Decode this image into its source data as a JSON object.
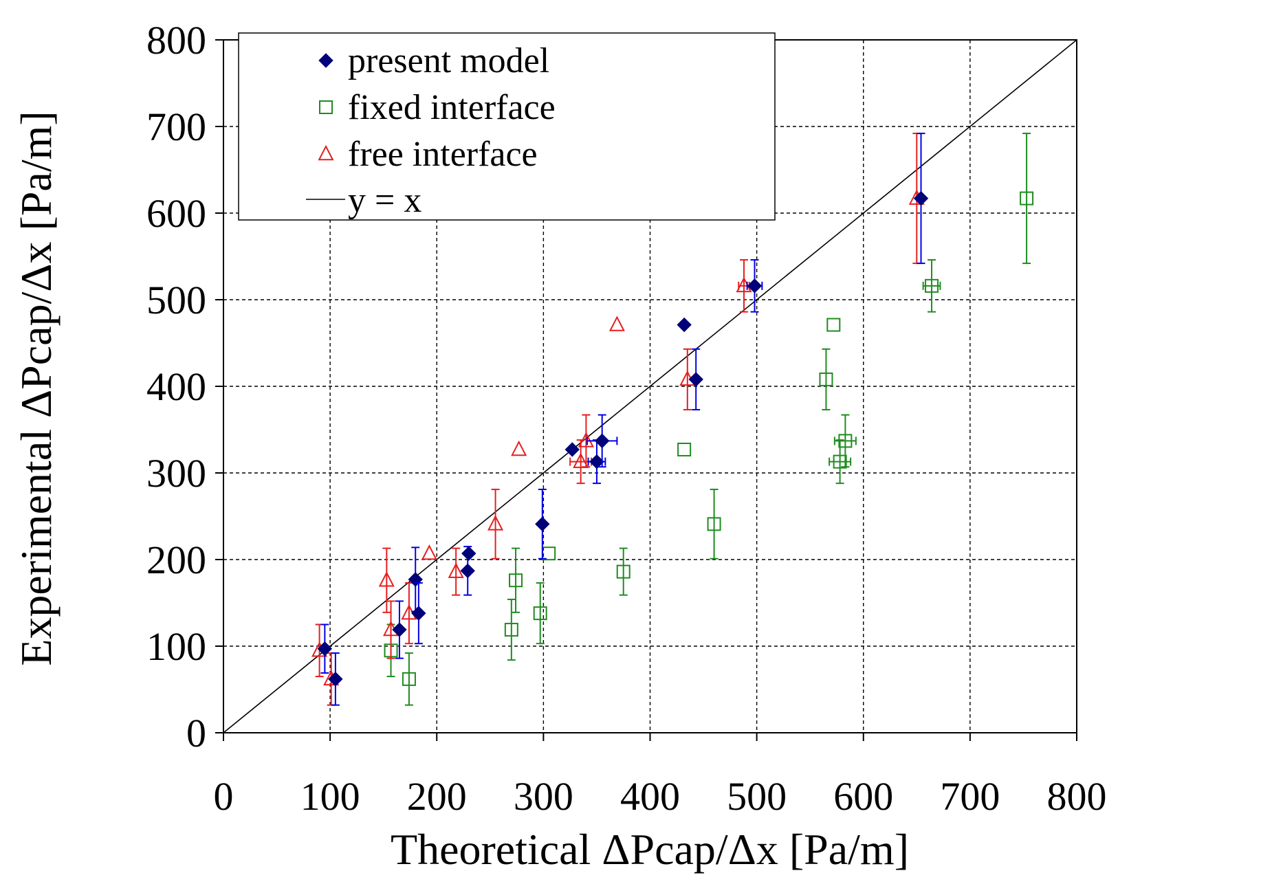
{
  "chart_data": {
    "type": "scatter",
    "xlabel": "Theoretical  ΔPcap/Δx [Pa/m]",
    "ylabel": "Experimental  ΔPcap/Δx [Pa/m]",
    "xlim": [
      0,
      800
    ],
    "ylim": [
      0,
      800
    ],
    "xticks": [
      "0",
      "100",
      "200",
      "300",
      "400",
      "500",
      "600",
      "700",
      "800"
    ],
    "yticks": [
      "0",
      "100",
      "200",
      "300",
      "400",
      "500",
      "600",
      "700",
      "800"
    ],
    "grid": true,
    "legend_position": "top-left",
    "reference_line": {
      "name": "y = x",
      "color": "#000000"
    },
    "series": [
      {
        "name": "present model",
        "marker": "diamond",
        "color": "#00007a",
        "error_color": "#0000e6",
        "points": [
          {
            "x": 95,
            "y": 97,
            "yerr": 28,
            "xerr": 0
          },
          {
            "x": 105,
            "y": 62,
            "yerr": 30,
            "xerr": 0
          },
          {
            "x": 165,
            "y": 119,
            "yerr": 33,
            "xerr": 0
          },
          {
            "x": 180,
            "y": 177,
            "yerr": 37,
            "xerr": 0
          },
          {
            "x": 183,
            "y": 138,
            "yerr": 35,
            "xerr": 0
          },
          {
            "x": 229,
            "y": 187,
            "yerr": 28,
            "xerr": 0
          },
          {
            "x": 230,
            "y": 207,
            "yerr": 0,
            "xerr": 0
          },
          {
            "x": 299,
            "y": 241,
            "yerr": 40,
            "xerr": 0
          },
          {
            "x": 327,
            "y": 327,
            "yerr": 0,
            "xerr": 0
          },
          {
            "x": 350,
            "y": 313,
            "yerr": 25,
            "xerr": 8
          },
          {
            "x": 355,
            "y": 337,
            "yerr": 30,
            "xerr": 14
          },
          {
            "x": 432,
            "y": 471,
            "yerr": 0,
            "xerr": 0
          },
          {
            "x": 443,
            "y": 408,
            "yerr": 35,
            "xerr": 0
          },
          {
            "x": 498,
            "y": 516,
            "yerr": 30,
            "xerr": 7
          },
          {
            "x": 654,
            "y": 617,
            "yerr": 75,
            "xerr": 0
          }
        ]
      },
      {
        "name": "fixed interface",
        "marker": "square-open",
        "color": "#1e8c1e",
        "error_color": "#1e8c1e",
        "points": [
          {
            "x": 157,
            "y": 95,
            "yerr": 30,
            "xerr": 0
          },
          {
            "x": 174,
            "y": 62,
            "yerr": 30,
            "xerr": 0
          },
          {
            "x": 270,
            "y": 119,
            "yerr": 35,
            "xerr": 0
          },
          {
            "x": 274,
            "y": 176,
            "yerr": 37,
            "xerr": 0
          },
          {
            "x": 297,
            "y": 138,
            "yerr": 35,
            "xerr": 0
          },
          {
            "x": 305,
            "y": 207,
            "yerr": 0,
            "xerr": 0
          },
          {
            "x": 375,
            "y": 186,
            "yerr": 27,
            "xerr": 0
          },
          {
            "x": 432,
            "y": 327,
            "yerr": 0,
            "xerr": 0
          },
          {
            "x": 460,
            "y": 241,
            "yerr": 40,
            "xerr": 0
          },
          {
            "x": 565,
            "y": 408,
            "yerr": 35,
            "xerr": 0
          },
          {
            "x": 572,
            "y": 471,
            "yerr": 0,
            "xerr": 0
          },
          {
            "x": 578,
            "y": 313,
            "yerr": 25,
            "xerr": 10
          },
          {
            "x": 583,
            "y": 337,
            "yerr": 30,
            "xerr": 10
          },
          {
            "x": 664,
            "y": 516,
            "yerr": 30,
            "xerr": 8
          },
          {
            "x": 753,
            "y": 617,
            "yerr": 75,
            "xerr": 0
          }
        ]
      },
      {
        "name": "free interface",
        "marker": "triangle-open",
        "color": "#e61e1e",
        "error_color": "#e61e1e",
        "points": [
          {
            "x": 90,
            "y": 95,
            "yerr": 30,
            "xerr": 0
          },
          {
            "x": 101,
            "y": 62,
            "yerr": 30,
            "xerr": 0
          },
          {
            "x": 153,
            "y": 176,
            "yerr": 37,
            "xerr": 0
          },
          {
            "x": 157,
            "y": 119,
            "yerr": 33,
            "xerr": 0
          },
          {
            "x": 174,
            "y": 138,
            "yerr": 35,
            "xerr": 0
          },
          {
            "x": 193,
            "y": 207,
            "yerr": 0,
            "xerr": 0
          },
          {
            "x": 218,
            "y": 186,
            "yerr": 27,
            "xerr": 0
          },
          {
            "x": 255,
            "y": 241,
            "yerr": 40,
            "xerr": 0
          },
          {
            "x": 277,
            "y": 327,
            "yerr": 0,
            "xerr": 0
          },
          {
            "x": 335,
            "y": 313,
            "yerr": 25,
            "xerr": 10
          },
          {
            "x": 340,
            "y": 337,
            "yerr": 30,
            "xerr": 0
          },
          {
            "x": 369,
            "y": 471,
            "yerr": 0,
            "xerr": 0
          },
          {
            "x": 435,
            "y": 408,
            "yerr": 35,
            "xerr": 0
          },
          {
            "x": 488,
            "y": 516,
            "yerr": 30,
            "xerr": 5
          },
          {
            "x": 650,
            "y": 617,
            "yerr": 75,
            "xerr": 0
          }
        ]
      }
    ]
  }
}
